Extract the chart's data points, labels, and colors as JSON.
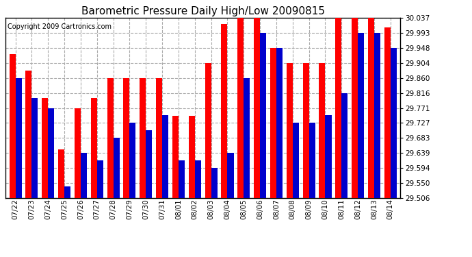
{
  "title": "Barometric Pressure Daily High/Low 20090815",
  "copyright": "Copyright 2009 Cartronics.com",
  "categories": [
    "07/22",
    "07/23",
    "07/24",
    "07/25",
    "07/26",
    "07/27",
    "07/28",
    "07/29",
    "07/30",
    "07/31",
    "08/01",
    "08/02",
    "08/03",
    "08/04",
    "08/05",
    "08/06",
    "08/07",
    "08/08",
    "08/09",
    "08/10",
    "08/11",
    "08/12",
    "08/13",
    "08/14"
  ],
  "highs": [
    29.93,
    29.882,
    29.8,
    29.65,
    29.771,
    29.8,
    29.86,
    29.86,
    29.86,
    29.86,
    29.748,
    29.748,
    29.904,
    30.02,
    30.037,
    30.037,
    29.948,
    29.904,
    29.904,
    29.904,
    30.037,
    30.037,
    30.037,
    30.01
  ],
  "lows": [
    29.86,
    29.8,
    29.771,
    29.539,
    29.639,
    29.617,
    29.683,
    29.727,
    29.706,
    29.75,
    29.617,
    29.617,
    29.595,
    29.639,
    29.86,
    29.993,
    29.948,
    29.727,
    29.727,
    29.75,
    29.816,
    29.993,
    29.993,
    29.948
  ],
  "high_color": "#ff0000",
  "low_color": "#0000cc",
  "ylim_min": 29.506,
  "ylim_max": 30.037,
  "yticks": [
    29.506,
    29.55,
    29.594,
    29.639,
    29.683,
    29.727,
    29.771,
    29.816,
    29.86,
    29.904,
    29.948,
    29.993,
    30.037
  ],
  "bg_color": "#ffffff",
  "grid_color": "#aaaaaa",
  "title_fontsize": 11,
  "copyright_fontsize": 7,
  "tick_fontsize": 7.5,
  "bar_width": 0.38
}
